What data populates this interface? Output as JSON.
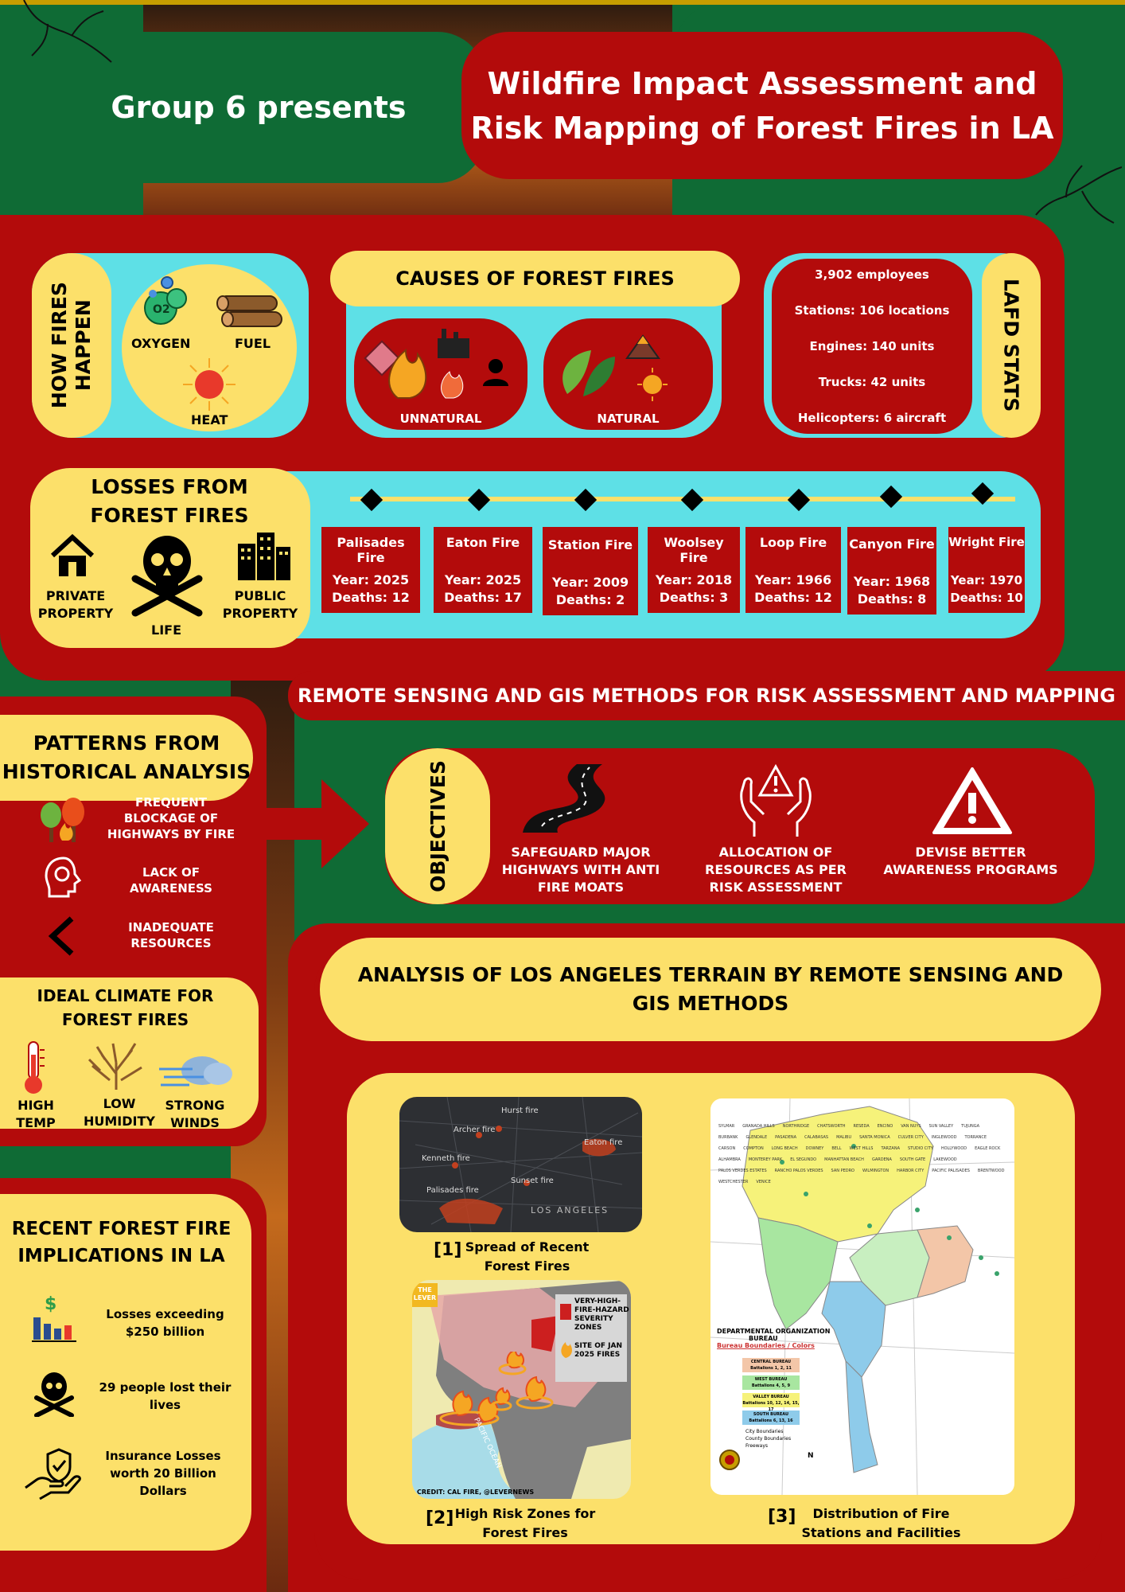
{
  "header": {
    "group": "Group 6 presents",
    "title_line1": "Wildfire Impact Assessment and",
    "title_line2": "Risk Mapping of Forest Fires in LA"
  },
  "how_fires": {
    "title_line1": "HOW FIRES",
    "title_line2": "HAPPEN",
    "oxygen": "OXYGEN",
    "fuel": "FUEL",
    "heat": "HEAT",
    "o2": "O2"
  },
  "causes": {
    "title": "CAUSES OF FOREST  FIRES",
    "unnatural": "UNNATURAL",
    "natural": "NATURAL"
  },
  "lafd": {
    "title": "LAFD STATS",
    "items": [
      "3,902 employees",
      "Stations: 106 locations",
      "Engines: 140 units",
      "Trucks: 42 units",
      "Helicopters: 6 aircraft"
    ]
  },
  "losses": {
    "title_line1": "LOSSES FROM",
    "title_line2": "FOREST FIRES",
    "private_line1": "PRIVATE",
    "private_line2": "PROPERTY",
    "life": "LIFE",
    "public_line1": "PUBLIC",
    "public_line2": "PROPERTY"
  },
  "fires": [
    {
      "name": "Palisades Fire",
      "year": "Year: 2025",
      "deaths": "Deaths: 12"
    },
    {
      "name": "Eaton Fire",
      "year": "Year: 2025",
      "deaths": "Deaths: 17"
    },
    {
      "name": "Station Fire",
      "year": "Year: 2009",
      "deaths": "Deaths: 2"
    },
    {
      "name": "Woolsey Fire",
      "year": "Year: 2018",
      "deaths": "Deaths: 3"
    },
    {
      "name": "Loop Fire",
      "year": "Year: 1966",
      "deaths": "Deaths: 12"
    },
    {
      "name": "Canyon Fire",
      "year": "Year: 1968",
      "deaths": "Deaths: 8"
    },
    {
      "name": "Wright Fire",
      "year": "Year: 1970",
      "deaths": "Deaths: 10"
    }
  ],
  "remote_sensing_title": "REMOTE SENSING AND GIS METHODS FOR RISK ASSESSMENT AND MAPPING",
  "patterns": {
    "title_line1": "PATTERNS  FROM",
    "title_line2": "HISTORICAL ANALYSIS",
    "items": [
      {
        "l1": "FREQUENT",
        "l2": "BLOCKAGE OF",
        "l3": "HIGHWAYS BY FIRE"
      },
      {
        "l1": "LACK OF",
        "l2": "AWARENESS",
        "l3": ""
      },
      {
        "l1": "INADEQUATE",
        "l2": "RESOURCES",
        "l3": ""
      }
    ]
  },
  "objectives": {
    "title": "OBJECTIVES",
    "items": [
      {
        "l1": "SAFEGUARD MAJOR",
        "l2": "HIGHWAYS WITH ANTI",
        "l3": "FIRE MOATS"
      },
      {
        "l1": "ALLOCATION OF",
        "l2": "RESOURCES AS PER",
        "l3": "RISK ASSESSMENT"
      },
      {
        "l1": "DEVISE BETTER",
        "l2": "AWARENESS PROGRAMS",
        "l3": ""
      }
    ]
  },
  "climate": {
    "title_line1": "IDEAL CLIMATE FOR",
    "title_line2": "FOREST FIRES",
    "high_l1": "HIGH",
    "high_l2": "TEMP",
    "low_l1": "LOW",
    "low_l2": "HUMIDITY",
    "wind_l1": "STRONG",
    "wind_l2": "WINDS"
  },
  "analysis": {
    "title_line1": "ANALYSIS OF LOS ANGELES TERRAIN BY REMOTE SENSING AND",
    "title_line2": "GIS METHODS",
    "map1_num": "[1]",
    "map1_l1": "Spread of Recent",
    "map1_l2": "Forest Fires",
    "map2_num": "[2]",
    "map2_l1": "High Risk Zones for",
    "map2_l2": "Forest Fires",
    "map3_num": "[3]",
    "map3_l1": "Distribution of Fire",
    "map3_l2": "Stations and Facilities"
  },
  "map1_labels": {
    "hurst": "Hurst fire",
    "archer": "Archer fire",
    "eaton": "Eaton fire",
    "kenneth": "Kenneth fire",
    "sunset": "Sunset fire",
    "palisades": "Palisades fire",
    "la": "LOS ANGELES"
  },
  "map2_labels": {
    "legend1_l1": "VERY-HIGH-",
    "legend1_l2": "FIRE-HAZARD",
    "legend1_l3": "SEVERITY",
    "legend1_l4": "ZONES",
    "legend2_l1": "SITE OF JAN",
    "legend2_l2": "2025 FIRES",
    "credit": "CREDIT: CAL FIRE, @LEVERNEWS",
    "lever_l1": "THE",
    "lever_l2": "LEVER",
    "ocean": "PACIFIC OCEAN"
  },
  "map3_labels": {
    "org_l1": "DEPARTMENTAL ORGANIZATION",
    "org_l2": "BUREAU",
    "boundaries": "Bureau Boundaries / Colors",
    "central_l1": "CENTRAL BUREAU",
    "central_l2": "Battalions 1, 2, 11",
    "west_l1": "WEST BUREAU",
    "west_l2": "Battalions 4, 5, 9",
    "valley_l1": "VALLEY BUREAU",
    "valley_l2": "Battalions 10, 12, 14, 15, 17",
    "south_l1": "SOUTH BUREAU",
    "south_l2": "Battalions 6, 13, 16",
    "city": "City Boundaries",
    "county": "County Boundaries",
    "freeways": "Freeways",
    "north": "N",
    "places": [
      "SYLMAR",
      "GRANADA HILLS",
      "NORTHRIDGE",
      "CHATSWORTH",
      "RESEDA",
      "ENCINO",
      "VAN NUYS",
      "SUN VALLEY",
      "TUJUNGA",
      "BURBANK",
      "GLENDALE",
      "PASADENA",
      "CALABASAS",
      "MALIBU",
      "SANTA MONICA",
      "CULVER CITY",
      "INGLEWOOD",
      "TORRANCE",
      "CARSON",
      "COMPTON",
      "LONG BEACH",
      "DOWNEY",
      "BELL",
      "WEST HILLS",
      "TARZANA",
      "STUDIO CITY",
      "HOLLYWOOD",
      "EAGLE ROCK",
      "ALHAMBRA",
      "MONTEREY PARK",
      "EL SEGUNDO",
      "MANHATTAN BEACH",
      "GARDENA",
      "SOUTH GATE",
      "LAKEWOOD",
      "PALOS VERDES ESTATES",
      "RANCHO PALOS VERDES",
      "SAN PEDRO",
      "WILMINGTON",
      "HARBOR CITY",
      "PACIFIC PALISADES",
      "BRENTWOOD",
      "WESTCHESTER",
      "VENICE"
    ]
  },
  "recent": {
    "title_line1": "RECENT FOREST FIRE",
    "title_line2": "IMPLICATIONS IN LA",
    "items": [
      {
        "l1": "Losses exceeding",
        "l2": "$250 billion",
        "l3": ""
      },
      {
        "l1": "29 people lost their",
        "l2": "lives",
        "l3": ""
      },
      {
        "l1": "Insurance Losses",
        "l2": "worth 20 Billion",
        "l3": "Dollars"
      }
    ],
    "dollar": "$"
  },
  "colors": {
    "green": "#0f6b35",
    "red": "#b30b0b",
    "yellow": "#fce06a",
    "cyan": "#5ee0e6"
  }
}
